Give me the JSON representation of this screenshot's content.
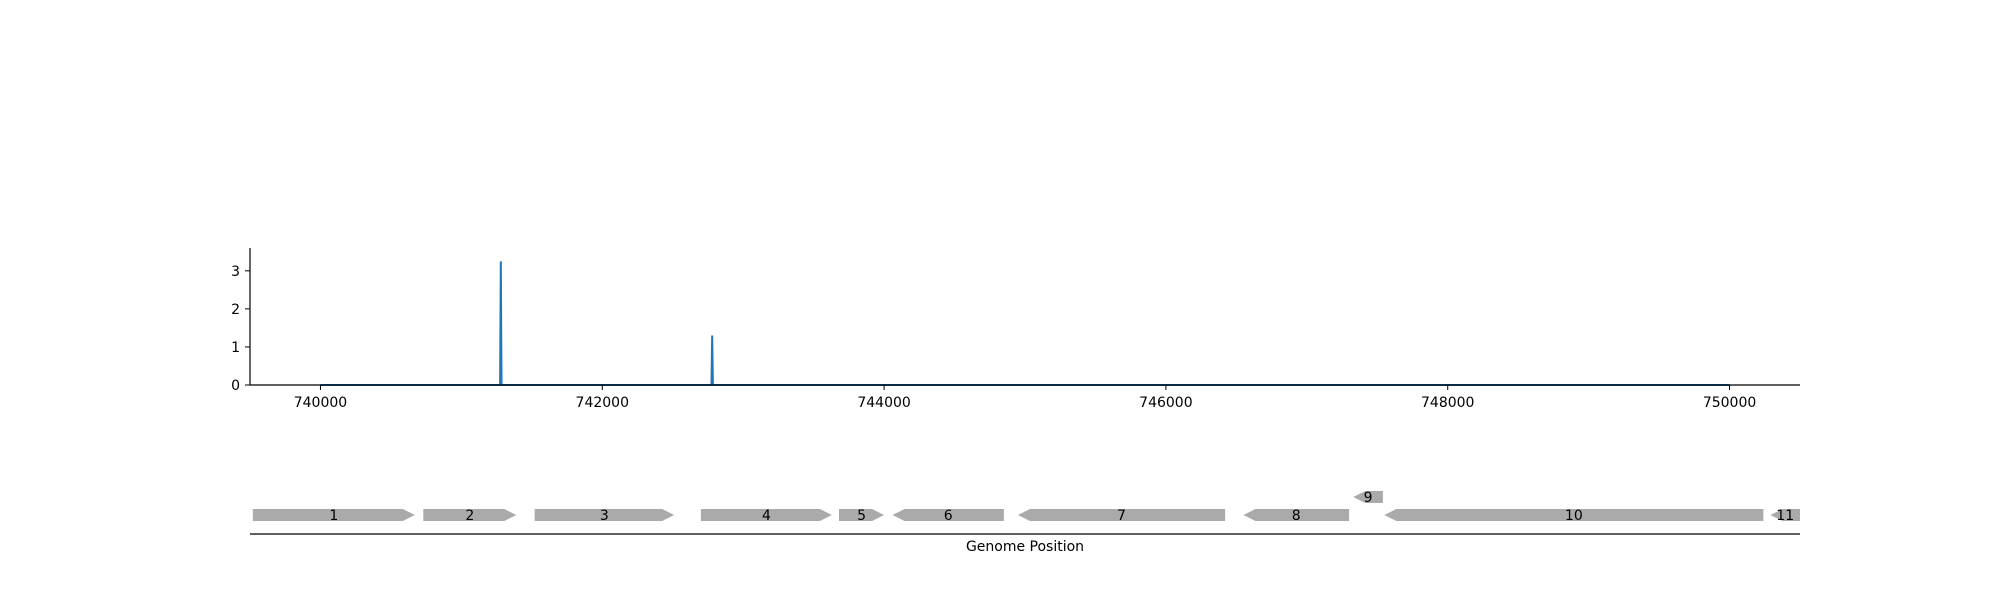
{
  "chart_data": [
    {
      "type": "line",
      "title": "",
      "xlabel": "",
      "ylabel": "",
      "xlim": [
        739500,
        750500
      ],
      "ylim": [
        0,
        3.6
      ],
      "x_ticks": [
        740000,
        742000,
        744000,
        746000,
        748000,
        750000
      ],
      "x_tick_labels": [
        "740000",
        "742000",
        "744000",
        "746000",
        "748000",
        "750000"
      ],
      "y_ticks": [
        0,
        1,
        2,
        3
      ],
      "y_tick_labels": [
        "0",
        "1",
        "2",
        "3"
      ],
      "grid": false,
      "series": [
        {
          "color": "#1f77b4",
          "x_range": [
            740000,
            750000
          ],
          "baseline": 0,
          "peaks": [
            {
              "x": 741280,
              "y": 3.25
            },
            {
              "x": 742780,
              "y": 1.3
            }
          ]
        }
      ]
    },
    {
      "type": "gene-track",
      "xlabel": "Genome Position",
      "xlim": [
        739500,
        750500
      ],
      "color": "#aaaaaa",
      "genes": [
        {
          "label": "1",
          "start": 739520,
          "end": 740670,
          "strand": "+",
          "row": 0
        },
        {
          "label": "2",
          "start": 740730,
          "end": 741390,
          "strand": "+",
          "row": 0
        },
        {
          "label": "3",
          "start": 741520,
          "end": 742510,
          "strand": "+",
          "row": 0
        },
        {
          "label": "4",
          "start": 742700,
          "end": 743630,
          "strand": "+",
          "row": 0
        },
        {
          "label": "5",
          "start": 743680,
          "end": 744000,
          "strand": "+",
          "row": 0
        },
        {
          "label": "6",
          "start": 744060,
          "end": 744850,
          "strand": "-",
          "row": 0
        },
        {
          "label": "7",
          "start": 744950,
          "end": 746420,
          "strand": "-",
          "row": 0
        },
        {
          "label": "8",
          "start": 746550,
          "end": 747300,
          "strand": "-",
          "row": 0
        },
        {
          "label": "9",
          "start": 747330,
          "end": 747540,
          "strand": "-",
          "row": 1
        },
        {
          "label": "10",
          "start": 747550,
          "end": 750240,
          "strand": "-",
          "row": 0
        },
        {
          "label": "11",
          "start": 750290,
          "end": 750500,
          "strand": "-",
          "row": 0
        }
      ]
    }
  ]
}
